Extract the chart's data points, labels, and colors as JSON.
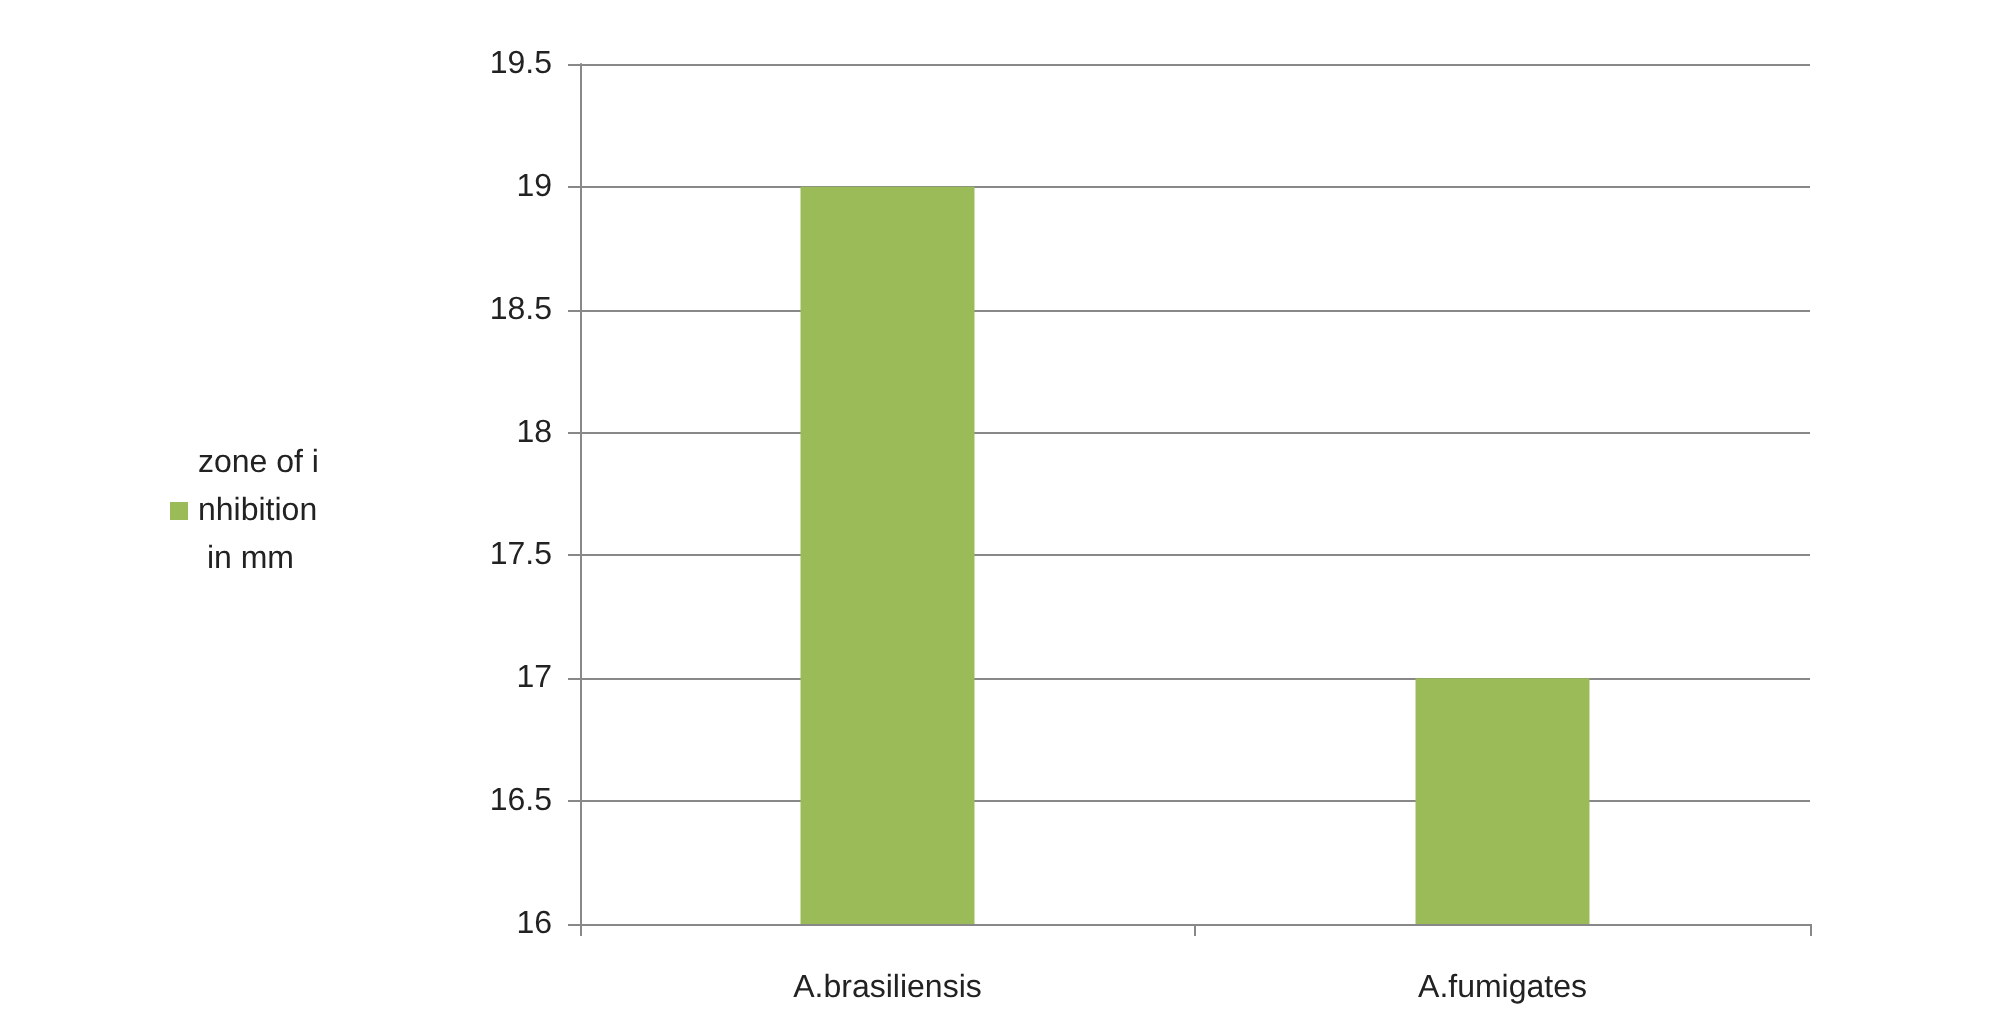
{
  "chart_data": {
    "type": "bar",
    "categories": [
      "A.brasiliensis",
      "A.fumigates"
    ],
    "series": [
      {
        "name": "zone of inhibition in mm",
        "color": "#9bbb59",
        "values": [
          19,
          17
        ]
      }
    ],
    "ylim": [
      16,
      19.5
    ],
    "yticks": [
      16,
      16.5,
      17,
      17.5,
      18,
      18.5,
      19,
      19.5
    ],
    "grid": "y",
    "legend": "left"
  }
}
